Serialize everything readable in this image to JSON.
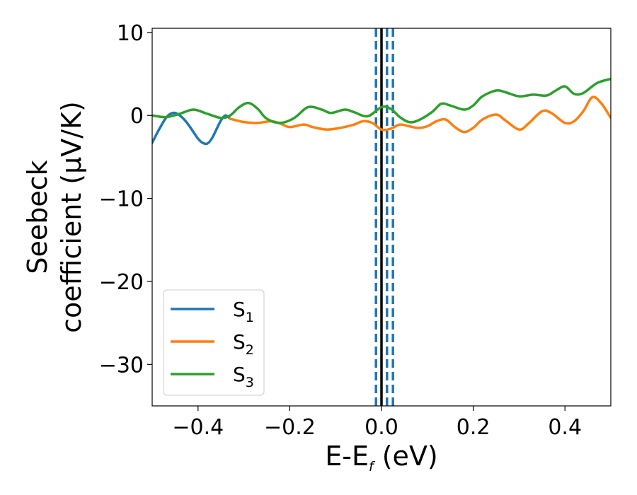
{
  "chart_data": {
    "type": "line",
    "xlabel": "E-E",
    "xlabel_sub": "f",
    "xlabel_unit": " (eV)",
    "ylabel_line1": "Seebeck",
    "ylabel_line2": "coefficient  (μV/K)",
    "xlim": [
      -0.5,
      0.5
    ],
    "ylim": [
      -35,
      10.5
    ],
    "xticks": [
      -0.4,
      -0.2,
      0.0,
      0.2,
      0.4
    ],
    "xtick_labels": [
      "−0.4",
      "−0.2",
      "0.0",
      "0.2",
      "0.4"
    ],
    "yticks": [
      10,
      0,
      -10,
      -20,
      -30
    ],
    "ytick_labels": [
      "10",
      "0",
      "−10",
      "−20",
      "−30"
    ],
    "grid": false,
    "legend_position": "lower-left",
    "vlines": [
      {
        "x": 0.0,
        "color": "#000000",
        "style": "solid"
      },
      {
        "x": -0.012,
        "color": "#1f77b4",
        "style": "dashed"
      },
      {
        "x": 0.012,
        "color": "#1f77b4",
        "style": "dashed"
      },
      {
        "x": 0.025,
        "color": "#1f77b4",
        "style": "dashed"
      }
    ],
    "series": [
      {
        "name": "S",
        "name_sub": "1",
        "color": "#1f77b4",
        "x": [
          -0.5,
          -0.49,
          -0.48,
          -0.47,
          -0.46,
          -0.45,
          -0.44,
          -0.43,
          -0.42,
          -0.41,
          -0.4,
          -0.39,
          -0.38,
          -0.37,
          -0.36,
          -0.35,
          -0.34,
          -0.33
        ],
        "y": [
          -3.3,
          -2.2,
          -1.2,
          -0.3,
          0.2,
          0.3,
          0.0,
          -0.5,
          -1.2,
          -2.0,
          -2.8,
          -3.3,
          -3.4,
          -2.8,
          -1.7,
          -0.6,
          0.0,
          -0.4
        ]
      },
      {
        "name": "S",
        "name_sub": "2",
        "color": "#ff7f0e",
        "x": [
          -0.33,
          -0.3,
          -0.27,
          -0.24,
          -0.22,
          -0.2,
          -0.17,
          -0.15,
          -0.12,
          -0.09,
          -0.06,
          -0.04,
          -0.02,
          0.0,
          0.02,
          0.04,
          0.06,
          0.08,
          0.1,
          0.12,
          0.14,
          0.16,
          0.18,
          0.2,
          0.22,
          0.25,
          0.27,
          0.3,
          0.32,
          0.35,
          0.37,
          0.4,
          0.42,
          0.44,
          0.46,
          0.48,
          0.5
        ],
        "y": [
          -0.4,
          -0.8,
          -0.9,
          -0.7,
          -1.0,
          -1.4,
          -1.1,
          -1.4,
          -1.7,
          -1.5,
          -1.1,
          -0.7,
          -0.9,
          -1.7,
          -1.6,
          -1.1,
          -1.3,
          -1.5,
          -1.3,
          -0.7,
          -0.5,
          -1.4,
          -2.0,
          -1.5,
          -0.5,
          0.1,
          -0.6,
          -1.7,
          -1.0,
          0.5,
          0.3,
          -0.9,
          -0.7,
          0.5,
          2.2,
          1.4,
          -0.3
        ]
      },
      {
        "name": "S",
        "name_sub": "3",
        "color": "#2ca02c",
        "x": [
          -0.5,
          -0.47,
          -0.44,
          -0.41,
          -0.38,
          -0.35,
          -0.33,
          -0.31,
          -0.29,
          -0.27,
          -0.25,
          -0.22,
          -0.19,
          -0.16,
          -0.13,
          -0.11,
          -0.08,
          -0.06,
          -0.03,
          0.0,
          0.02,
          0.04,
          0.06,
          0.08,
          0.11,
          0.13,
          0.15,
          0.18,
          0.2,
          0.22,
          0.25,
          0.27,
          0.3,
          0.33,
          0.36,
          0.38,
          0.4,
          0.42,
          0.44,
          0.47,
          0.5
        ],
        "y": [
          0.0,
          -0.2,
          0.2,
          0.7,
          0.2,
          -0.3,
          0.0,
          1.0,
          1.5,
          0.8,
          -0.4,
          -0.9,
          -0.3,
          1.0,
          0.7,
          0.3,
          0.7,
          0.4,
          -0.1,
          1.0,
          0.8,
          -0.2,
          -0.8,
          -0.6,
          0.4,
          1.4,
          1.2,
          0.7,
          1.2,
          2.3,
          3.0,
          2.8,
          2.3,
          2.5,
          2.4,
          3.0,
          3.5,
          2.6,
          2.7,
          3.9,
          4.4
        ]
      }
    ]
  }
}
